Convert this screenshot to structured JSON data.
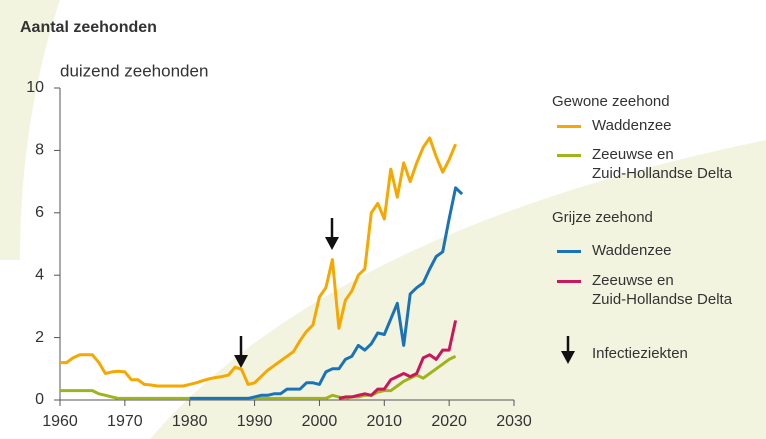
{
  "chart_data": {
    "type": "line",
    "title": "Aantal zeehonden",
    "y_label": "duizend zeehonden",
    "legend_titles": [
      "Gewone zeehond",
      "Grijze zeehond"
    ],
    "annotation": "Infectieziekten",
    "xlim": [
      1960,
      2030
    ],
    "xticks": [
      1960,
      1970,
      1980,
      1990,
      2000,
      2010,
      2020,
      2030
    ],
    "ylim": [
      0,
      10
    ],
    "yticks": [
      0,
      2,
      4,
      6,
      8,
      10
    ],
    "grid": false,
    "series": [
      {
        "name": "Waddenzee",
        "color": "#f5a800",
        "x": [
          1960,
          1961,
          1962,
          1963,
          1964,
          1965,
          1966,
          1967,
          1968,
          1969,
          1970,
          1971,
          1972,
          1973,
          1974,
          1975,
          1976,
          1977,
          1978,
          1979,
          1980,
          1981,
          1982,
          1983,
          1984,
          1985,
          1986,
          1987,
          1988,
          1989,
          1990,
          1991,
          1992,
          1993,
          1994,
          1995,
          1996,
          1997,
          1998,
          1999,
          2000,
          2001,
          2002,
          2003,
          2004,
          2005,
          2006,
          2007,
          2008,
          2009,
          2010,
          2011,
          2012,
          2013,
          2014,
          2015,
          2016,
          2017,
          2018,
          2019,
          2020,
          2021
        ],
        "values": [
          1.2,
          1.2,
          1.35,
          1.45,
          1.45,
          1.45,
          1.2,
          0.85,
          0.9,
          0.92,
          0.9,
          0.65,
          0.65,
          0.5,
          0.48,
          0.45,
          0.45,
          0.45,
          0.45,
          0.45,
          0.5,
          0.55,
          0.62,
          0.68,
          0.72,
          0.75,
          0.8,
          1.05,
          0.98,
          0.5,
          0.55,
          0.75,
          0.95,
          1.1,
          1.25,
          1.4,
          1.55,
          1.9,
          2.2,
          2.4,
          3.3,
          3.6,
          4.5,
          2.3,
          3.2,
          3.5,
          4.0,
          4.2,
          6.0,
          6.3,
          5.8,
          7.4,
          6.5,
          7.6,
          7.0,
          7.6,
          8.1,
          8.4,
          7.8,
          7.3,
          7.7,
          8.2
        ]
      },
      {
        "name": "Zeeuwse en\nZuid-Hollandse Delta",
        "color": "#9fb31c",
        "x": [
          1960,
          1965,
          1966,
          1967,
          1968,
          1969,
          2001,
          2002,
          2003,
          2004,
          2005,
          2006,
          2007,
          2008,
          2009,
          2010,
          2011,
          2012,
          2013,
          2014,
          2015,
          2016,
          2017,
          2018,
          2019,
          2020,
          2021
        ],
        "values": [
          0.3,
          0.3,
          0.2,
          0.15,
          0.1,
          0.05,
          0.05,
          0.15,
          0.1,
          0.05,
          0.1,
          0.1,
          0.15,
          0.15,
          0.25,
          0.3,
          0.3,
          0.45,
          0.6,
          0.7,
          0.8,
          0.7,
          0.85,
          1.0,
          1.15,
          1.3,
          1.4
        ]
      },
      {
        "name": "Waddenzee",
        "color": "#1a73b8",
        "x": [
          1980,
          1989,
          1990,
          1991,
          1992,
          1993,
          1994,
          1995,
          1996,
          1997,
          1998,
          1999,
          2000,
          2001,
          2002,
          2003,
          2004,
          2005,
          2006,
          2007,
          2008,
          2009,
          2010,
          2011,
          2012,
          2013,
          2014,
          2015,
          2016,
          2017,
          2018,
          2019,
          2020,
          2021,
          2022
        ],
        "values": [
          0.05,
          0.05,
          0.1,
          0.15,
          0.15,
          0.2,
          0.2,
          0.35,
          0.35,
          0.35,
          0.55,
          0.55,
          0.5,
          0.9,
          1.0,
          1.0,
          1.3,
          1.4,
          1.75,
          1.6,
          1.8,
          2.15,
          2.1,
          2.6,
          3.1,
          1.75,
          3.4,
          3.6,
          3.75,
          4.2,
          4.6,
          4.75,
          5.8,
          6.8,
          6.6
        ]
      },
      {
        "name": "Zeeuwse en\nZuid-Hollandse Delta",
        "color": "#c8175d",
        "x": [
          2003,
          2004,
          2005,
          2006,
          2007,
          2008,
          2009,
          2010,
          2011,
          2012,
          2013,
          2014,
          2015,
          2016,
          2017,
          2018,
          2019,
          2020,
          2021
        ],
        "values": [
          0.05,
          0.1,
          0.1,
          0.15,
          0.2,
          0.15,
          0.35,
          0.35,
          0.65,
          0.75,
          0.85,
          0.75,
          0.85,
          1.35,
          1.45,
          1.3,
          1.6,
          1.6,
          2.55
        ]
      }
    ]
  }
}
